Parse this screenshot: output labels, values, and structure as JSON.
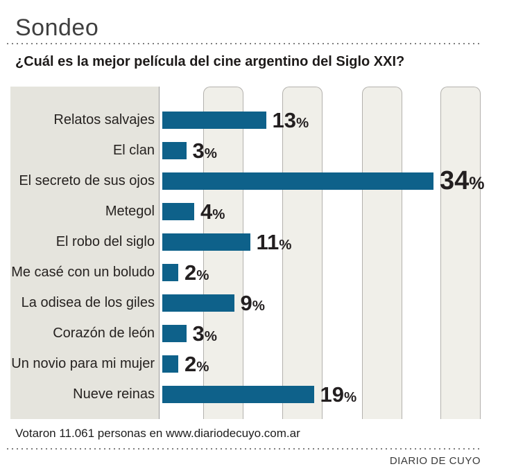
{
  "header": {
    "title": "Sondeo",
    "question": "¿Cuál es la mejor película del cine argentino del Siglo XXI?"
  },
  "chart_data": {
    "type": "bar",
    "orientation": "horizontal",
    "title": "¿Cuál es la mejor película del cine argentino del Siglo XXI?",
    "categories": [
      "Relatos salvajes",
      "El clan",
      "El secreto de sus ojos",
      "Metegol",
      "El robo del siglo",
      "Me casé con un boludo",
      "La odisea de los giles",
      "Corazón de león",
      "Un novio para mi mujer",
      "Nueve reinas"
    ],
    "values": [
      13,
      3,
      34,
      4,
      11,
      2,
      9,
      3,
      2,
      19
    ],
    "unit": "%",
    "xlim": [
      0,
      43
    ],
    "grid": "decorative-vertical-stripes",
    "legend": "none",
    "colors": {
      "bar": "#0e618a",
      "label_panel_bg": "#e5e4dd",
      "stripe_bg": "#f0efe9",
      "stripe_border": "#b3b1ad",
      "value_text": "#231f20"
    }
  },
  "footer": {
    "note": "Votaron 11.061 personas en www.diariodecuyo.com.ar",
    "brand": "DIARIO DE CUYO"
  }
}
